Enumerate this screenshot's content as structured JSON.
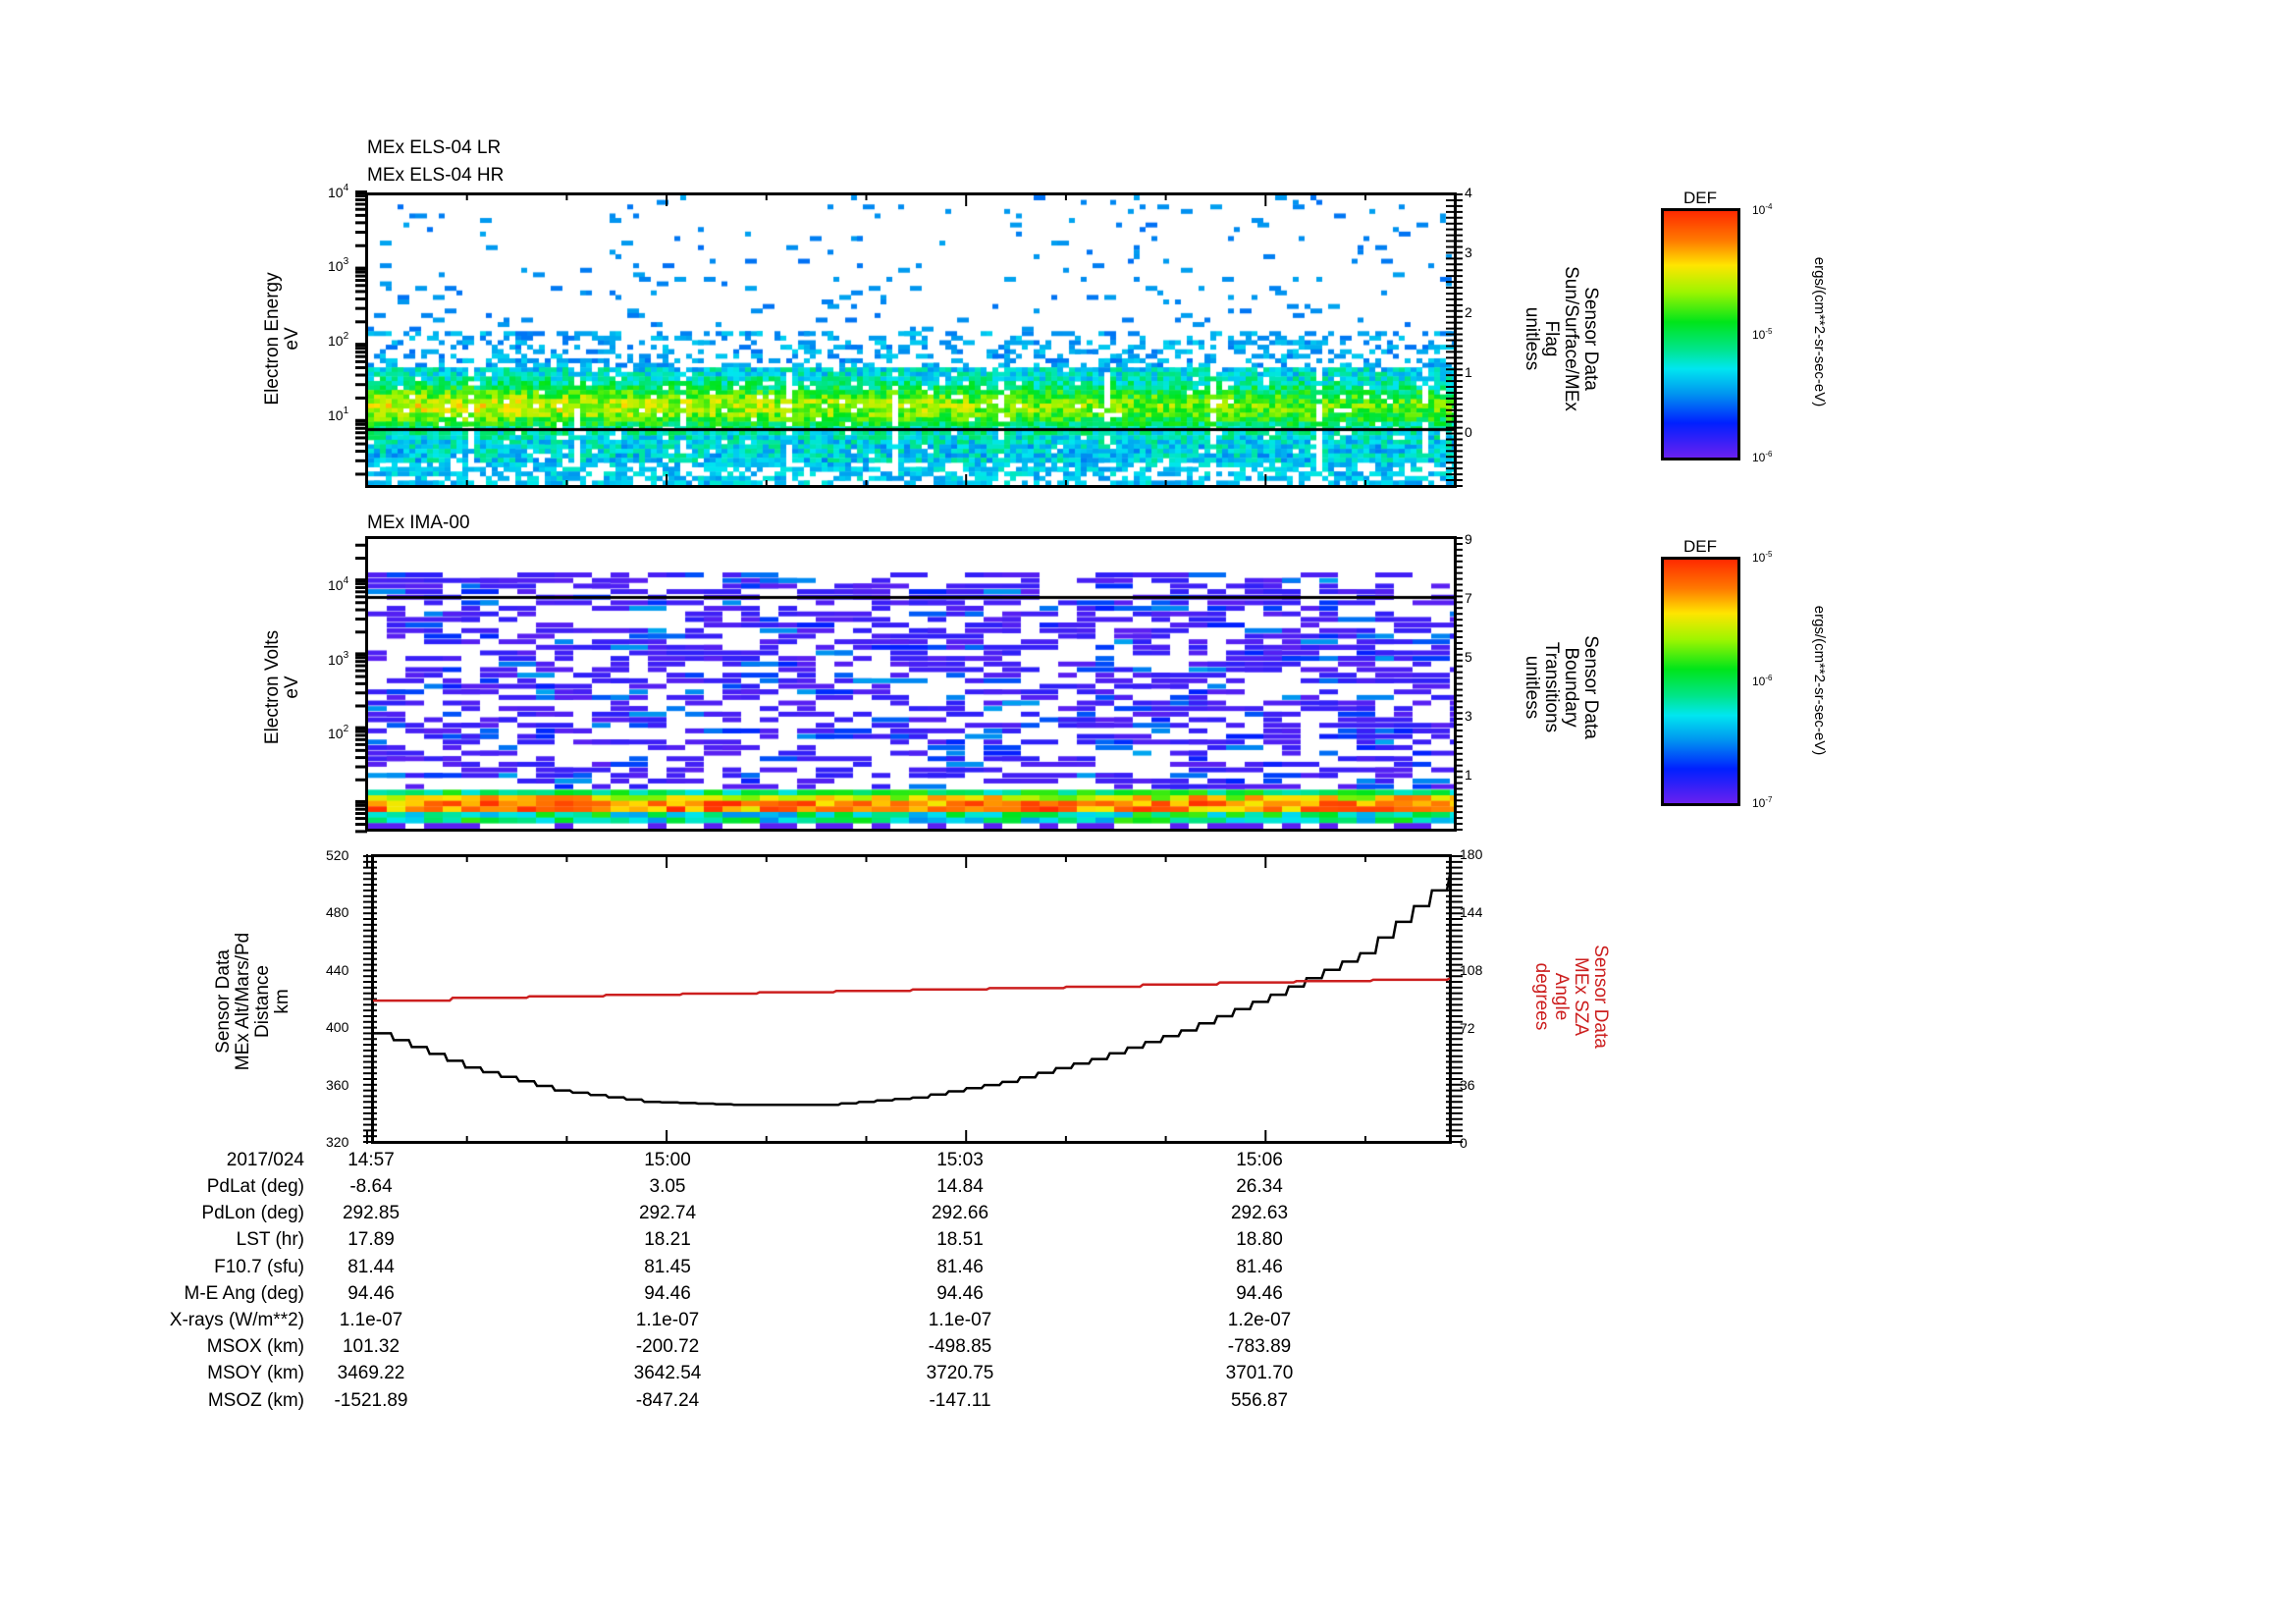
{
  "chart_data": [
    {
      "type": "heatmap",
      "title": [
        "MEx ELS-04 LR",
        "MEx ELS-04 HR"
      ],
      "ylabel": [
        "Electron Energy",
        "eV"
      ],
      "yscale": "log",
      "ylim": [
        1.3,
        10000
      ],
      "yticks": [
        {
          "base": "10",
          "exp": "1"
        },
        {
          "base": "10",
          "exp": "2"
        },
        {
          "base": "10",
          "exp": "3"
        },
        {
          "base": "10",
          "exp": "4"
        }
      ],
      "y2label": [
        "Sensor Data",
        "Sun/Surface/MEx",
        "Flag",
        "unitless"
      ],
      "y2ticks": [
        "0",
        "1",
        "2",
        "3",
        "4"
      ],
      "y2lim": [
        -0.95,
        4
      ],
      "overlay_line_value": 0,
      "colorbar": {
        "title": "DEF",
        "min_label": {
          "base": "10",
          "exp": "-6"
        },
        "mid_label": {
          "base": "10",
          "exp": "-5"
        },
        "max_label": {
          "base": "10",
          "exp": "-4"
        },
        "units": "ergs/(cm**2-sr-sec-eV)"
      },
      "description": "Electron spectrogram; dense flux 3-50 eV peaking near 15 eV (red/orange), sparse blue counts up to 10^4 eV; periodic vertical gaps every ~0.5 min"
    },
    {
      "type": "heatmap",
      "title": [
        "MEx IMA-00"
      ],
      "ylabel": [
        "Electron Volts",
        "eV"
      ],
      "yscale": "log",
      "ylim": [
        4,
        40000
      ],
      "yticks": [
        {
          "base": "10",
          "exp": "2"
        },
        {
          "base": "10",
          "exp": "3"
        },
        {
          "base": "10",
          "exp": "4"
        }
      ],
      "y2label": [
        "Sensor Data",
        "Boundary",
        "Transitions",
        "unitless"
      ],
      "y2ticks": [
        "1",
        "3",
        "5",
        "7",
        "9"
      ],
      "y2lim": [
        -1,
        9
      ],
      "overlay_line_value": 7,
      "colorbar": {
        "title": "DEF",
        "min_label": {
          "base": "10",
          "exp": "-7"
        },
        "mid_label": {
          "base": "10",
          "exp": "-6"
        },
        "max_label": {
          "base": "10",
          "exp": "-5"
        },
        "units": "ergs/(cm**2-sr-sec-eV)"
      },
      "description": "Ion spectrogram; purple/blue sparse counts 20-15000 eV, intense band (green/yellow/red) at lowest energies ~8-15 eV"
    },
    {
      "type": "line",
      "x": [
        "14:57",
        "14:58",
        "14:59",
        "15:00",
        "15:01",
        "15:02",
        "15:03",
        "15:04",
        "15:05",
        "15:06",
        "15:07",
        "15:08",
        "15:08.8"
      ],
      "xticks": [
        "14:57",
        "15:00",
        "15:03",
        "15:06"
      ],
      "ylabel": [
        "Sensor Data",
        "MEx Alt/Mars/Pd",
        "Distance",
        "km"
      ],
      "ylim": [
        320,
        520
      ],
      "yticks": [
        "320",
        "360",
        "400",
        "440",
        "480",
        "520"
      ],
      "y2label": [
        "Sensor Data",
        "MEx SZA",
        "Angle",
        "degrees"
      ],
      "y2lim": [
        0,
        180
      ],
      "y2ticks": [
        "0",
        "36",
        "72",
        "108",
        "144",
        "180"
      ],
      "series": [
        {
          "name": "MEx Alt/Mars/Pd Distance (km)",
          "axis": "left",
          "color": "#000000",
          "values": [
            396,
            372,
            356,
            348,
            346,
            346,
            351,
            362,
            378,
            398,
            423,
            452,
            507
          ]
        },
        {
          "name": "MEx SZA Angle (degrees)",
          "axis": "right",
          "color": "#cc1f1f",
          "values": [
            89,
            91,
            92,
            93,
            94,
            95,
            96,
            97,
            98,
            100,
            101,
            102,
            103
          ]
        }
      ]
    }
  ],
  "date_label": "2017/024",
  "time_ticks": [
    "14:57",
    "15:00",
    "15:03",
    "15:06"
  ],
  "ephemeris": {
    "rows": [
      {
        "label": "PdLat (deg)",
        "values": [
          "-8.64",
          "3.05",
          "14.84",
          "26.34"
        ]
      },
      {
        "label": "PdLon (deg)",
        "values": [
          "292.85",
          "292.74",
          "292.66",
          "292.63"
        ]
      },
      {
        "label": "LST (hr)",
        "values": [
          "17.89",
          "18.21",
          "18.51",
          "18.80"
        ]
      },
      {
        "label": "F10.7 (sfu)",
        "values": [
          "81.44",
          "81.45",
          "81.46",
          "81.46"
        ]
      },
      {
        "label": "M-E Ang (deg)",
        "values": [
          "94.46",
          "94.46",
          "94.46",
          "94.46"
        ]
      },
      {
        "label": "X-rays (W/m**2)",
        "values": [
          "1.1e-07",
          "1.1e-07",
          "1.1e-07",
          "1.2e-07"
        ]
      },
      {
        "label": "MSOX (km)",
        "values": [
          "101.32",
          "-200.72",
          "-498.85",
          "-783.89"
        ]
      },
      {
        "label": "MSOY (km)",
        "values": [
          "3469.22",
          "3642.54",
          "3720.75",
          "3701.70"
        ]
      },
      {
        "label": "MSOZ (km)",
        "values": [
          "-1521.89",
          "-847.24",
          "-147.11",
          "556.87"
        ]
      }
    ]
  },
  "colors": {
    "sza_line": "#cc1f1f",
    "alt_line": "#000000",
    "frame": "#000000"
  }
}
